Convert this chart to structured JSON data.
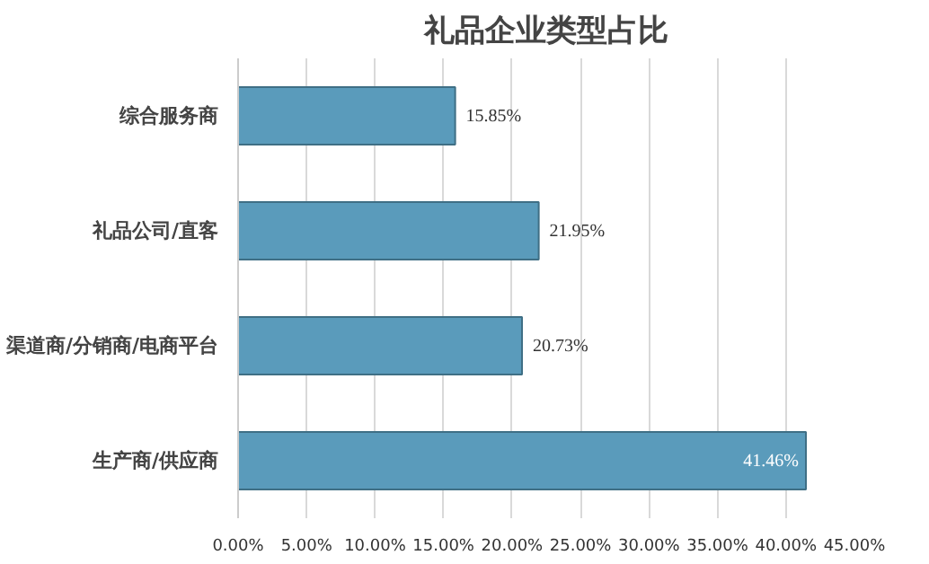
{
  "chart_data": {
    "type": "bar",
    "orientation": "horizontal",
    "title": "礼品企业类型占比",
    "categories": [
      "综合服务商",
      "礼品公司/直客",
      "渠道商/分销商/电商平台",
      "生产商/供应商"
    ],
    "values": [
      15.85,
      21.95,
      20.73,
      41.46
    ],
    "value_labels": [
      "15.85%",
      "21.95%",
      "20.73%",
      "41.46%"
    ],
    "color": "#5a9bbb",
    "xlim": [
      0,
      45
    ],
    "xticks": [
      {
        "value": 0,
        "label": "0.00%"
      },
      {
        "value": 5,
        "label": "5.00%"
      },
      {
        "value": 10,
        "label": "10.00%"
      },
      {
        "value": 15,
        "label": "15.00%"
      },
      {
        "value": 20,
        "label": "20.00%"
      },
      {
        "value": 25,
        "label": "25.00%"
      },
      {
        "value": 30,
        "label": "30.00%"
      },
      {
        "value": 35,
        "label": "35.00%"
      },
      {
        "value": 40,
        "label": "40.00%"
      },
      {
        "value": 45,
        "label": "45.00%"
      }
    ],
    "grid": "x"
  }
}
